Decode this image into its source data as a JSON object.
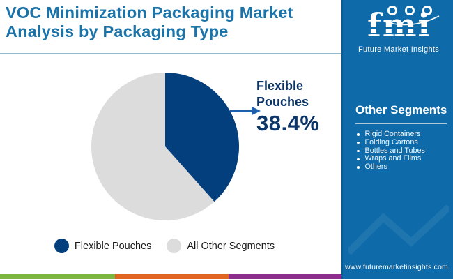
{
  "header": {
    "title": "VOC Minimization Packaging Market Analysis by Packaging Type"
  },
  "brand": {
    "logo_text": "fmi",
    "logo_tagline": "Future Market Insights",
    "website": "www.futuremarketinsights.com"
  },
  "sidebar": {
    "heading": "Other Segments",
    "items": [
      "Rigid Containers",
      "Folding Cartons",
      "Bottles and Tubes",
      "Wraps and Films",
      "Others"
    ]
  },
  "chart_data": {
    "type": "pie",
    "title": "VOC Minimization Packaging Market Analysis by Packaging Type",
    "slices": [
      {
        "label": "Flexible Pouches",
        "value": 38.4,
        "color": "#033F7D"
      },
      {
        "label": "All Other Segments",
        "value": 61.6,
        "color": "#DCDCDC"
      }
    ],
    "annotation": {
      "label": "Flexible Pouches",
      "value_text": "38.4%"
    },
    "legend_position": "bottom",
    "start_angle_deg": 0,
    "direction": "clockwise"
  },
  "colors": {
    "title_blue": "#1B74A9",
    "sidebar_blue": "#0E6AA8",
    "pie_navy": "#033F7D",
    "pie_gray": "#DCDCDC",
    "arrow_blue": "#1B5FAD",
    "label_navy": "#0C3568",
    "stripe_green": "#7CB53F",
    "stripe_orange": "#E0661F",
    "stripe_purple": "#8E2E8C"
  }
}
